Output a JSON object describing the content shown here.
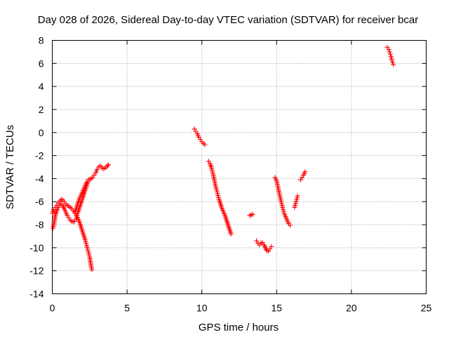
{
  "chart_data": {
    "type": "scatter",
    "title": "Day 028 of 2026, Sidereal Day-to-day VTEC variation (SDTVAR) for receiver bcar",
    "xlabel": "GPS time / hours",
    "ylabel": "SDTVAR / TECUs",
    "xlim": [
      0,
      25
    ],
    "ylim": [
      -14,
      8
    ],
    "xticks": [
      0,
      5,
      10,
      15,
      20,
      25
    ],
    "yticks": [
      -14,
      -12,
      -10,
      -8,
      -6,
      -4,
      -2,
      0,
      2,
      4,
      6,
      8
    ],
    "grid": true,
    "marker": "+",
    "color": "#ff0000",
    "series": [
      {
        "segments": [
          [
            [
              0.0,
              -7.0
            ],
            [
              0.1,
              -6.7
            ],
            [
              0.2,
              -6.5
            ],
            [
              0.3,
              -6.3
            ],
            [
              0.4,
              -6.1
            ],
            [
              0.5,
              -5.95
            ],
            [
              0.6,
              -5.8
            ],
            [
              0.7,
              -5.85
            ],
            [
              0.8,
              -6.0
            ],
            [
              0.9,
              -6.2
            ],
            [
              1.0,
              -6.3
            ],
            [
              1.1,
              -6.4
            ],
            [
              1.2,
              -6.5
            ],
            [
              1.3,
              -6.6
            ],
            [
              1.4,
              -6.8
            ],
            [
              1.5,
              -7.0
            ],
            [
              1.6,
              -7.2
            ],
            [
              1.7,
              -7.4
            ],
            [
              1.8,
              -7.7
            ],
            [
              1.9,
              -8.1
            ],
            [
              2.0,
              -8.5
            ],
            [
              2.1,
              -8.9
            ],
            [
              2.2,
              -9.3
            ],
            [
              2.3,
              -9.8
            ],
            [
              2.4,
              -10.3
            ],
            [
              2.5,
              -10.8
            ],
            [
              2.55,
              -11.2
            ],
            [
              2.6,
              -11.6
            ],
            [
              2.65,
              -11.9
            ]
          ],
          [
            [
              0.05,
              -8.3
            ],
            [
              0.1,
              -8.0
            ],
            [
              0.15,
              -7.6
            ],
            [
              0.2,
              -7.2
            ],
            [
              0.3,
              -6.8
            ],
            [
              0.4,
              -6.5
            ],
            [
              0.5,
              -6.3
            ],
            [
              0.6,
              -6.2
            ],
            [
              0.7,
              -6.35
            ],
            [
              0.8,
              -6.6
            ],
            [
              0.9,
              -6.9
            ],
            [
              1.0,
              -7.2
            ],
            [
              1.1,
              -7.4
            ],
            [
              1.2,
              -7.6
            ],
            [
              1.3,
              -7.7
            ],
            [
              1.4,
              -7.75
            ],
            [
              1.5,
              -7.7
            ],
            [
              1.6,
              -7.5
            ],
            [
              1.7,
              -7.0
            ],
            [
              1.8,
              -6.6
            ],
            [
              1.9,
              -6.2
            ],
            [
              2.0,
              -5.8
            ],
            [
              2.1,
              -5.4
            ],
            [
              2.2,
              -5.0
            ],
            [
              2.3,
              -4.6
            ],
            [
              2.4,
              -4.3
            ],
            [
              2.5,
              -4.1
            ],
            [
              2.6,
              -4.0
            ],
            [
              2.7,
              -3.9
            ],
            [
              2.8,
              -3.7
            ],
            [
              2.9,
              -3.5
            ],
            [
              3.0,
              -3.2
            ],
            [
              3.1,
              -3.0
            ],
            [
              3.2,
              -2.9
            ],
            [
              3.3,
              -3.0
            ],
            [
              3.4,
              -3.15
            ],
            [
              3.5,
              -3.1
            ],
            [
              3.6,
              -3.0
            ],
            [
              3.7,
              -2.9
            ],
            [
              3.75,
              -2.8
            ]
          ],
          [
            [
              1.5,
              -7.0
            ],
            [
              1.6,
              -6.6
            ],
            [
              1.7,
              -6.2
            ],
            [
              1.8,
              -5.8
            ],
            [
              1.9,
              -5.5
            ],
            [
              2.0,
              -5.2
            ],
            [
              2.1,
              -4.9
            ],
            [
              2.2,
              -4.6
            ],
            [
              2.3,
              -4.3
            ],
            [
              2.4,
              -4.1
            ]
          ],
          [
            [
              9.5,
              0.3
            ],
            [
              9.6,
              0.1
            ],
            [
              9.7,
              -0.1
            ],
            [
              9.8,
              -0.4
            ],
            [
              9.9,
              -0.6
            ],
            [
              10.0,
              -0.8
            ],
            [
              10.1,
              -0.95
            ],
            [
              10.2,
              -1.05
            ]
          ],
          [
            [
              10.45,
              -2.5
            ],
            [
              10.55,
              -2.7
            ],
            [
              10.65,
              -3.1
            ],
            [
              10.75,
              -3.6
            ],
            [
              10.85,
              -4.2
            ],
            [
              10.95,
              -4.8
            ],
            [
              11.05,
              -5.3
            ],
            [
              11.15,
              -5.8
            ],
            [
              11.25,
              -6.2
            ],
            [
              11.35,
              -6.6
            ],
            [
              11.45,
              -6.9
            ],
            [
              11.55,
              -7.2
            ],
            [
              11.65,
              -7.6
            ],
            [
              11.75,
              -8.0
            ],
            [
              11.85,
              -8.4
            ],
            [
              11.95,
              -8.8
            ]
          ],
          [
            [
              13.2,
              -7.2
            ],
            [
              13.3,
              -7.15
            ],
            [
              13.4,
              -7.1
            ]
          ],
          [
            [
              13.65,
              -9.4
            ],
            [
              13.75,
              -9.6
            ],
            [
              13.85,
              -9.75
            ],
            [
              13.95,
              -9.6
            ],
            [
              14.05,
              -9.55
            ],
            [
              14.15,
              -9.75
            ],
            [
              14.25,
              -10.0
            ],
            [
              14.35,
              -10.25
            ],
            [
              14.45,
              -10.3
            ],
            [
              14.55,
              -10.1
            ],
            [
              14.65,
              -9.9
            ]
          ],
          [
            [
              14.9,
              -3.9
            ],
            [
              15.0,
              -4.2
            ],
            [
              15.1,
              -4.8
            ],
            [
              15.2,
              -5.4
            ],
            [
              15.3,
              -6.0
            ],
            [
              15.4,
              -6.5
            ],
            [
              15.5,
              -7.0
            ],
            [
              15.6,
              -7.3
            ],
            [
              15.7,
              -7.6
            ],
            [
              15.8,
              -7.9
            ],
            [
              15.9,
              -8.05
            ]
          ],
          [
            [
              16.2,
              -6.5
            ],
            [
              16.3,
              -6.0
            ],
            [
              16.4,
              -5.5
            ]
          ],
          [
            [
              16.6,
              -4.1
            ],
            [
              16.7,
              -3.9
            ],
            [
              16.8,
              -3.7
            ],
            [
              16.9,
              -3.4
            ]
          ],
          [
            [
              22.4,
              7.4
            ],
            [
              22.5,
              7.2
            ],
            [
              22.55,
              7.0
            ],
            [
              22.6,
              6.8
            ],
            [
              22.65,
              6.6
            ],
            [
              22.7,
              6.3
            ],
            [
              22.75,
              6.1
            ],
            [
              22.8,
              5.9
            ]
          ]
        ]
      }
    ]
  }
}
